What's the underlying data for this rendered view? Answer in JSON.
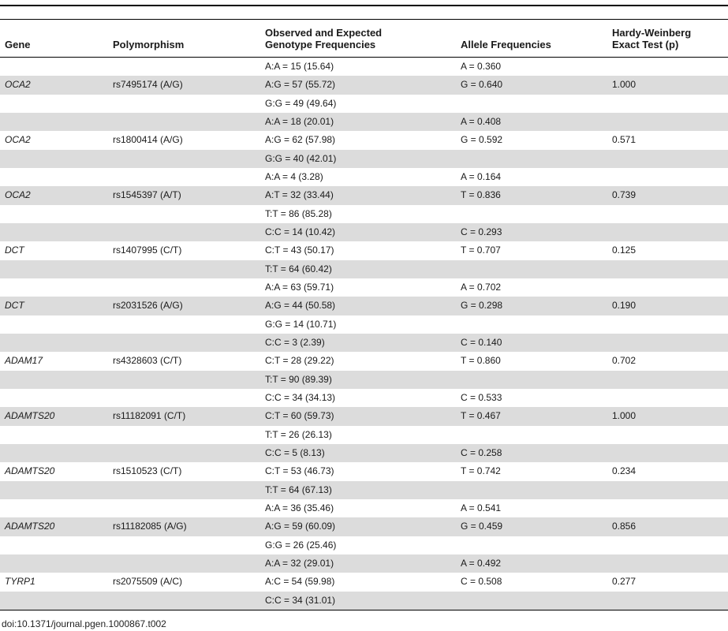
{
  "table": {
    "headers": {
      "gene": "Gene",
      "polymorphism": "Polymorphism",
      "genotype_line1": "Observed and Expected",
      "genotype_line2": "Genotype Frequencies",
      "allele": "Allele Frequencies",
      "hwe_line1": "Hardy-Weinberg",
      "hwe_line2": "Exact Test (p)"
    },
    "rows": [
      {
        "gene": "",
        "poly": "",
        "geno": "A:A = 15 (15.64)",
        "allele": "A = 0.360",
        "hwe": ""
      },
      {
        "gene": "OCA2",
        "poly": "rs7495174 (A/G)",
        "geno": "A:G = 57 (55.72)",
        "allele": "G = 0.640",
        "hwe": "1.000"
      },
      {
        "gene": "",
        "poly": "",
        "geno": "G:G = 49 (49.64)",
        "allele": "",
        "hwe": ""
      },
      {
        "gene": "",
        "poly": "",
        "geno": "A:A = 18 (20.01)",
        "allele": "A = 0.408",
        "hwe": ""
      },
      {
        "gene": "OCA2",
        "poly": "rs1800414 (A/G)",
        "geno": "A:G = 62 (57.98)",
        "allele": "G = 0.592",
        "hwe": "0.571"
      },
      {
        "gene": "",
        "poly": "",
        "geno": "G:G = 40 (42.01)",
        "allele": "",
        "hwe": ""
      },
      {
        "gene": "",
        "poly": "",
        "geno": "A:A = 4 (3.28)",
        "allele": "A = 0.164",
        "hwe": ""
      },
      {
        "gene": "OCA2",
        "poly": "rs1545397 (A/T)",
        "geno": "A:T = 32 (33.44)",
        "allele": "T = 0.836",
        "hwe": "0.739"
      },
      {
        "gene": "",
        "poly": "",
        "geno": "T:T = 86 (85.28)",
        "allele": "",
        "hwe": ""
      },
      {
        "gene": "",
        "poly": "",
        "geno": "C:C = 14 (10.42)",
        "allele": "C = 0.293",
        "hwe": ""
      },
      {
        "gene": "DCT",
        "poly": "rs1407995 (C/T)",
        "geno": "C:T = 43 (50.17)",
        "allele": "T = 0.707",
        "hwe": "0.125"
      },
      {
        "gene": "",
        "poly": "",
        "geno": "T:T = 64 (60.42)",
        "allele": "",
        "hwe": ""
      },
      {
        "gene": "",
        "poly": "",
        "geno": "A:A = 63 (59.71)",
        "allele": "A = 0.702",
        "hwe": ""
      },
      {
        "gene": "DCT",
        "poly": "rs2031526 (A/G)",
        "geno": "A:G = 44 (50.58)",
        "allele": "G = 0.298",
        "hwe": "0.190"
      },
      {
        "gene": "",
        "poly": "",
        "geno": "G:G = 14 (10.71)",
        "allele": "",
        "hwe": ""
      },
      {
        "gene": "",
        "poly": "",
        "geno": "C:C = 3 (2.39)",
        "allele": "C = 0.140",
        "hwe": ""
      },
      {
        "gene": "ADAM17",
        "poly": "rs4328603 (C/T)",
        "geno": "C:T = 28 (29.22)",
        "allele": "T = 0.860",
        "hwe": "0.702"
      },
      {
        "gene": "",
        "poly": "",
        "geno": "T:T = 90 (89.39)",
        "allele": "",
        "hwe": ""
      },
      {
        "gene": "",
        "poly": "",
        "geno": "C:C = 34 (34.13)",
        "allele": "C = 0.533",
        "hwe": ""
      },
      {
        "gene": "ADAMTS20",
        "poly": "rs11182091 (C/T)",
        "geno": "C:T = 60 (59.73)",
        "allele": "T = 0.467",
        "hwe": "1.000"
      },
      {
        "gene": "",
        "poly": "",
        "geno": "T:T = 26 (26.13)",
        "allele": "",
        "hwe": ""
      },
      {
        "gene": "",
        "poly": "",
        "geno": "C:C = 5 (8.13)",
        "allele": "C = 0.258",
        "hwe": ""
      },
      {
        "gene": "ADAMTS20",
        "poly": "rs1510523 (C/T)",
        "geno": "C:T = 53 (46.73)",
        "allele": "T = 0.742",
        "hwe": "0.234"
      },
      {
        "gene": "",
        "poly": "",
        "geno": "T:T = 64 (67.13)",
        "allele": "",
        "hwe": ""
      },
      {
        "gene": "",
        "poly": "",
        "geno": "A:A = 36 (35.46)",
        "allele": "A = 0.541",
        "hwe": ""
      },
      {
        "gene": "ADAMTS20",
        "poly": "rs11182085 (A/G)",
        "geno": "A:G = 59 (60.09)",
        "allele": "G = 0.459",
        "hwe": "0.856"
      },
      {
        "gene": "",
        "poly": "",
        "geno": "G:G = 26 (25.46)",
        "allele": "",
        "hwe": ""
      },
      {
        "gene": "",
        "poly": "",
        "geno": "A:A = 32 (29.01)",
        "allele": "A = 0.492",
        "hwe": ""
      },
      {
        "gene": "TYRP1",
        "poly": "rs2075509 (A/C)",
        "geno": "A:C = 54 (59.98)",
        "allele": "C = 0.508",
        "hwe": "0.277"
      },
      {
        "gene": "",
        "poly": "",
        "geno": "C:C = 34 (31.01)",
        "allele": "",
        "hwe": ""
      }
    ]
  },
  "footer": {
    "doi": "doi:10.1371/journal.pgen.1000867.t002"
  }
}
